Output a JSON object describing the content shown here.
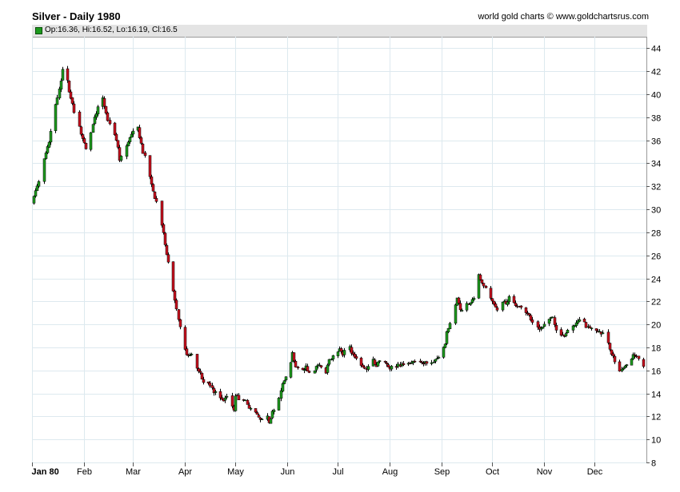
{
  "header": {
    "title": "Silver - Daily 1980",
    "credit": "world gold charts © www.goldchartsrus.com",
    "ohlc_label": "Op:16.36, Hi:16.52, Lo:16.19, Cl:16.5"
  },
  "colors": {
    "up": "#1d9a1d",
    "down": "#c8101e",
    "grid": "#dde9ef",
    "legend_bg": "#e4e4e4"
  },
  "chart_data": {
    "type": "candlestick",
    "title": "Silver - Daily 1980",
    "ylim": [
      8,
      45
    ],
    "y_ticks": [
      8,
      10,
      12,
      14,
      16,
      18,
      20,
      22,
      24,
      26,
      28,
      30,
      32,
      34,
      36,
      38,
      40,
      42,
      44
    ],
    "x_ticks": [
      {
        "label": "Jan 80",
        "day": 0,
        "bold": true
      },
      {
        "label": "Feb",
        "day": 31
      },
      {
        "label": "Mar",
        "day": 60
      },
      {
        "label": "Apr",
        "day": 91
      },
      {
        "label": "May",
        "day": 121
      },
      {
        "label": "Jun",
        "day": 152
      },
      {
        "label": "Jul",
        "day": 182
      },
      {
        "label": "Aug",
        "day": 213
      },
      {
        "label": "Sep",
        "day": 244
      },
      {
        "label": "Oct",
        "day": 274
      },
      {
        "label": "Nov",
        "day": 305
      },
      {
        "label": "Dec",
        "day": 335
      }
    ],
    "x_range_days": [
      0,
      366
    ],
    "grid": true,
    "close_anchors": [
      [
        0,
        30.5
      ],
      [
        2,
        31.6
      ],
      [
        4,
        32.5
      ],
      [
        5,
        33.0
      ],
      [
        6,
        33.9
      ],
      [
        8,
        34.9
      ],
      [
        10,
        36.0
      ],
      [
        12,
        37.5
      ],
      [
        14,
        39.0
      ],
      [
        16,
        40.5
      ],
      [
        18,
        42.0
      ],
      [
        21,
        41.1
      ],
      [
        23,
        39.6
      ],
      [
        25,
        38.5
      ],
      [
        27,
        37.5
      ],
      [
        30,
        36.2
      ],
      [
        32,
        35.3
      ],
      [
        35,
        36.8
      ],
      [
        38,
        38.4
      ],
      [
        41,
        40.2
      ],
      [
        43,
        39.1
      ],
      [
        45,
        37.6
      ],
      [
        47,
        37.1
      ],
      [
        49,
        36.3
      ],
      [
        51,
        35.4
      ],
      [
        52,
        34.3
      ],
      [
        55,
        35.3
      ],
      [
        58,
        36.2
      ],
      [
        61,
        37.1
      ],
      [
        63,
        37.0
      ],
      [
        66,
        35.0
      ],
      [
        68,
        34.0
      ],
      [
        70,
        32.8
      ],
      [
        72,
        31.6
      ],
      [
        74,
        30.6
      ],
      [
        76,
        29.2
      ],
      [
        78,
        27.8
      ],
      [
        80,
        26.2
      ],
      [
        82,
        24.6
      ],
      [
        84,
        22.8
      ],
      [
        86,
        21.3
      ],
      [
        88,
        19.8
      ],
      [
        90,
        18.6
      ],
      [
        92,
        17.2
      ],
      [
        95,
        17.3
      ],
      [
        96,
        17.5
      ],
      [
        98,
        16.2
      ],
      [
        100,
        15.8
      ],
      [
        102,
        15.0
      ],
      [
        104,
        14.9
      ],
      [
        106,
        14.6
      ],
      [
        108,
        14.2
      ],
      [
        111,
        13.9
      ],
      [
        112,
        13.6
      ],
      [
        114,
        13.3
      ],
      [
        116,
        13.6
      ],
      [
        118,
        12.9
      ],
      [
        120,
        12.6
      ],
      [
        121,
        13.9
      ],
      [
        123,
        13.4
      ],
      [
        125,
        13.2
      ],
      [
        127,
        13.4
      ],
      [
        129,
        12.8
      ],
      [
        131,
        12.9
      ],
      [
        133,
        12.4
      ],
      [
        135,
        12.1
      ],
      [
        136,
        11.9
      ],
      [
        138,
        11.6
      ],
      [
        140,
        12.1
      ],
      [
        141,
        11.6
      ],
      [
        143,
        12.3
      ],
      [
        145,
        13.1
      ],
      [
        147,
        13.6
      ],
      [
        149,
        15.0
      ],
      [
        151,
        15.3
      ],
      [
        152,
        15.9
      ],
      [
        154,
        16.8
      ],
      [
        155,
        17.4
      ],
      [
        157,
        16.4
      ],
      [
        159,
        16.0
      ],
      [
        161,
        16.1
      ],
      [
        163,
        16.3
      ],
      [
        165,
        15.8
      ],
      [
        167,
        16.0
      ],
      [
        169,
        16.2
      ],
      [
        171,
        16.6
      ],
      [
        173,
        16.2
      ],
      [
        175,
        15.9
      ],
      [
        177,
        16.8
      ],
      [
        179,
        17.3
      ],
      [
        181,
        17.6
      ],
      [
        183,
        17.8
      ],
      [
        185,
        17.4
      ],
      [
        187,
        17.9
      ],
      [
        189,
        18.0
      ],
      [
        191,
        17.3
      ],
      [
        193,
        16.9
      ],
      [
        195,
        16.5
      ],
      [
        197,
        16.2
      ],
      [
        199,
        16.1
      ],
      [
        201,
        16.5
      ],
      [
        203,
        16.9
      ],
      [
        205,
        16.4
      ],
      [
        207,
        16.8
      ],
      [
        209,
        17.0
      ],
      [
        211,
        16.7
      ],
      [
        213,
        16.2
      ],
      [
        215,
        16.5
      ],
      [
        217,
        16.3
      ],
      [
        219,
        16.5
      ],
      [
        221,
        16.4
      ],
      [
        223,
        16.4
      ],
      [
        225,
        16.6
      ],
      [
        227,
        16.8
      ],
      [
        229,
        16.8
      ],
      [
        231,
        16.7
      ],
      [
        233,
        16.7
      ],
      [
        235,
        16.6
      ],
      [
        237,
        16.8
      ],
      [
        239,
        16.7
      ],
      [
        241,
        16.9
      ],
      [
        243,
        17.2
      ],
      [
        244,
        17.6
      ],
      [
        246,
        18.4
      ],
      [
        247,
        19.3
      ],
      [
        249,
        20.2
      ],
      [
        251,
        21.0
      ],
      [
        253,
        22.4
      ],
      [
        255,
        21.3
      ],
      [
        257,
        21.5
      ],
      [
        259,
        21.8
      ],
      [
        261,
        21.9
      ],
      [
        263,
        22.3
      ],
      [
        265,
        23.3
      ],
      [
        266,
        24.3
      ],
      [
        268,
        23.6
      ],
      [
        270,
        23.2
      ],
      [
        272,
        22.6
      ],
      [
        274,
        22.1
      ],
      [
        276,
        21.4
      ],
      [
        278,
        21.3
      ],
      [
        280,
        21.9
      ],
      [
        282,
        21.8
      ],
      [
        284,
        22.4
      ],
      [
        286,
        22.0
      ],
      [
        288,
        21.7
      ],
      [
        290,
        21.5
      ],
      [
        292,
        21.2
      ],
      [
        294,
        21.1
      ],
      [
        296,
        20.8
      ],
      [
        298,
        20.1
      ],
      [
        300,
        19.7
      ],
      [
        302,
        19.5
      ],
      [
        304,
        19.8
      ],
      [
        306,
        20.0
      ],
      [
        308,
        20.3
      ],
      [
        310,
        20.6
      ],
      [
        312,
        19.6
      ],
      [
        314,
        18.9
      ],
      [
        316,
        18.9
      ],
      [
        318,
        19.1
      ],
      [
        320,
        19.6
      ],
      [
        322,
        19.9
      ],
      [
        324,
        20.2
      ],
      [
        326,
        20.5
      ],
      [
        328,
        20.3
      ],
      [
        330,
        19.8
      ],
      [
        332,
        19.7
      ],
      [
        334,
        19.9
      ],
      [
        336,
        19.6
      ],
      [
        338,
        19.4
      ],
      [
        340,
        19.2
      ],
      [
        342,
        18.6
      ],
      [
        344,
        17.9
      ],
      [
        346,
        17.1
      ],
      [
        348,
        16.6
      ],
      [
        349,
        15.4
      ],
      [
        350,
        15.9
      ],
      [
        352,
        16.2
      ],
      [
        354,
        16.4
      ],
      [
        356,
        16.8
      ],
      [
        358,
        17.4
      ],
      [
        360,
        17.3
      ],
      [
        362,
        16.6
      ],
      [
        364,
        16.5
      ]
    ]
  }
}
